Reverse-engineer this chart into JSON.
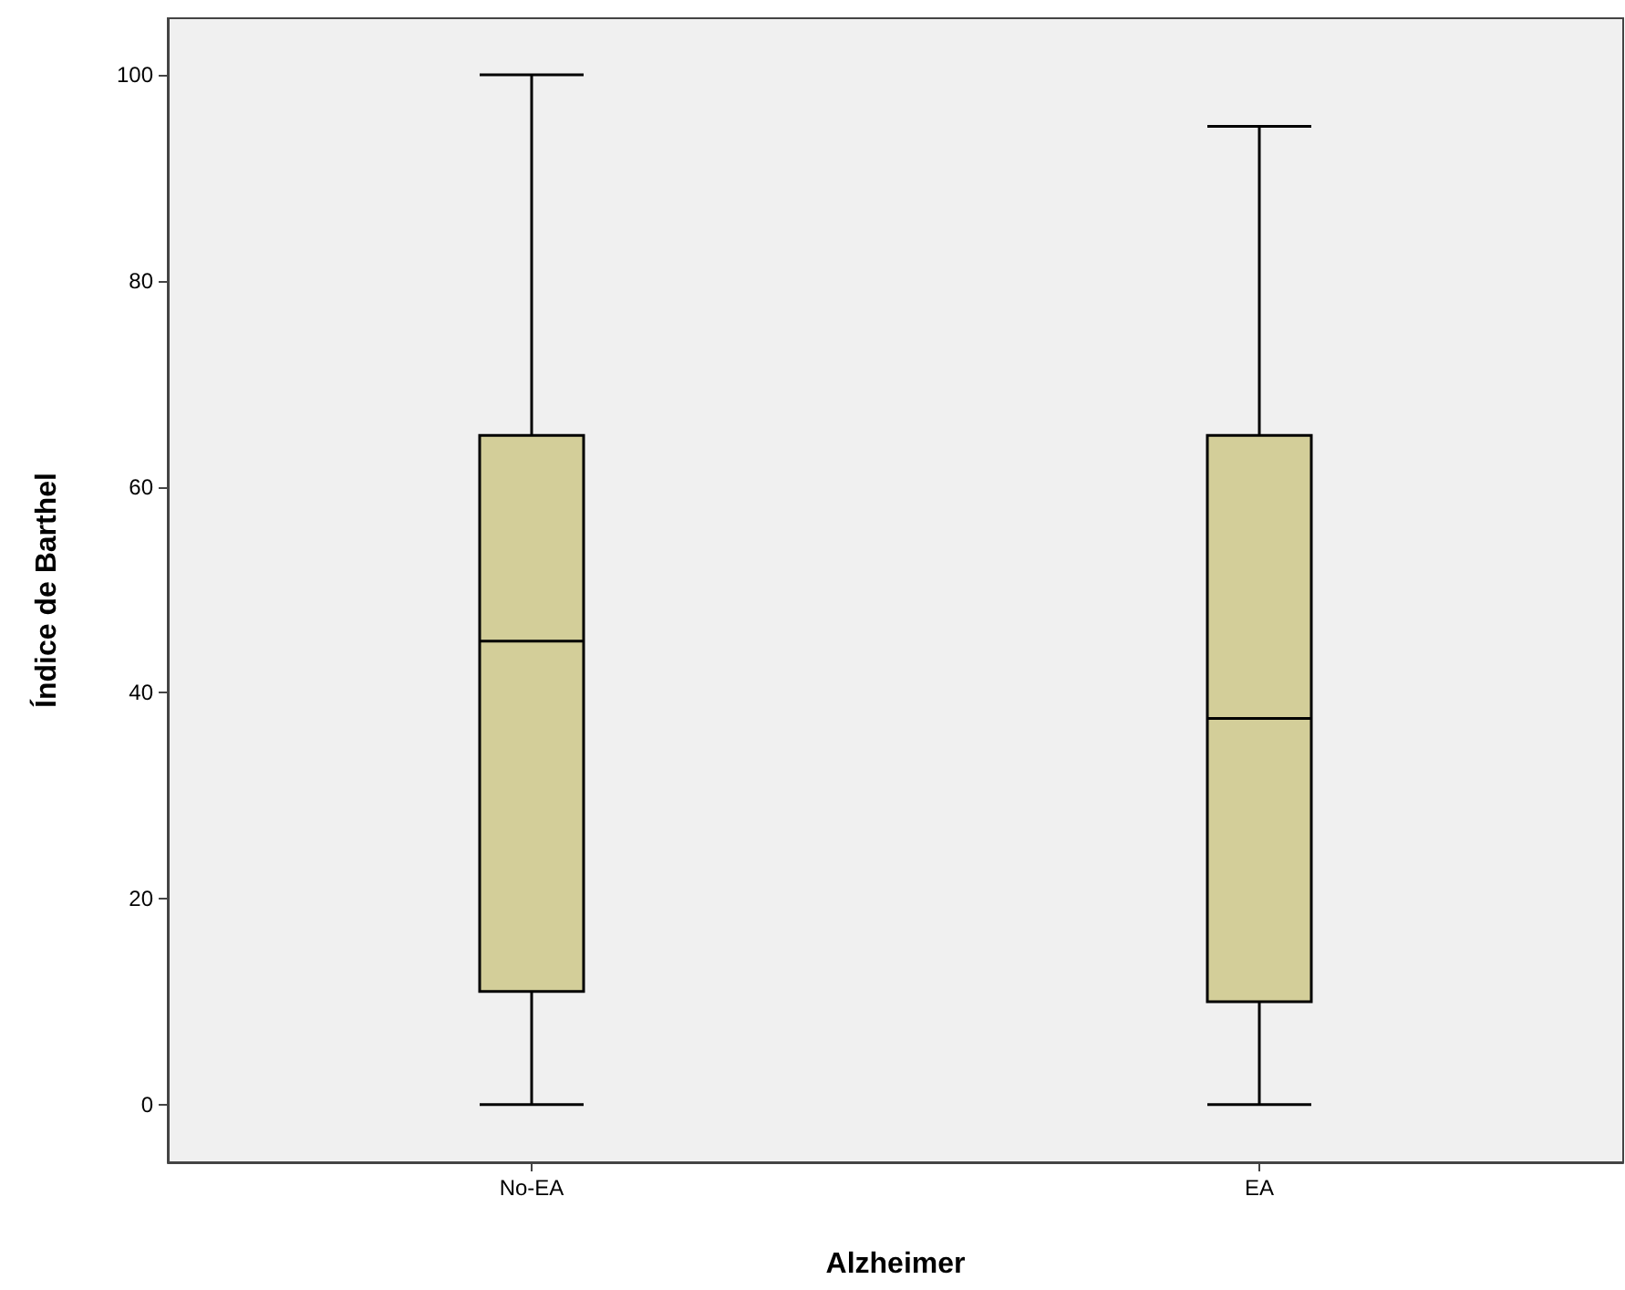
{
  "chart_data": {
    "type": "box",
    "xlabel": "Alzheimer",
    "ylabel": "Índice de Barthel",
    "categories": [
      "No-EA",
      "EA"
    ],
    "series": [
      {
        "color": "#d3ce99",
        "boxes": [
          {
            "low": 0,
            "q1": 11,
            "median": 45,
            "q3": 65,
            "high": 100
          },
          {
            "low": 0,
            "q1": 10,
            "median": 37.5,
            "q3": 65,
            "high": 95
          }
        ]
      }
    ],
    "ylim": [
      -5.6,
      105.5
    ],
    "yticks": [
      0,
      20,
      40,
      60,
      80,
      100
    ],
    "grid": false
  }
}
